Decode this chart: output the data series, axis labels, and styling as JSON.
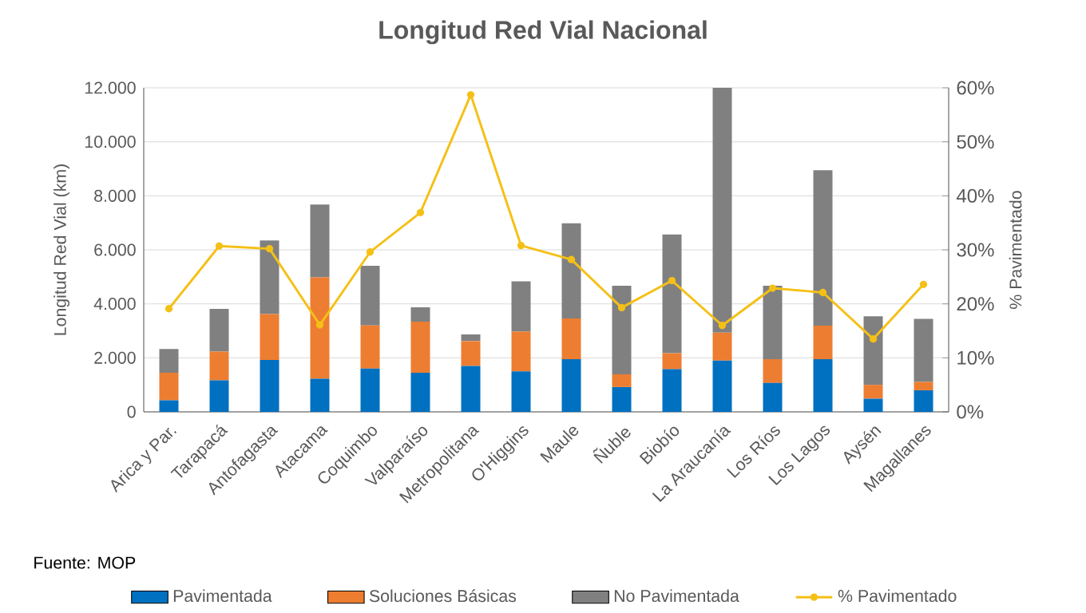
{
  "chart_data": {
    "type": "bar",
    "title": "Longitud Red Vial Nacional",
    "ylabel": "Longitud Red Vial (km)",
    "y2label": "% Pavimentado",
    "categories": [
      "Arica y Par.",
      "Tarapacá",
      "Antofagasta",
      "Atacama",
      "Coquimbo",
      "Valparaíso",
      "Metropolitana",
      "O'Higgins",
      "Maule",
      "Ñuble",
      "Biobío",
      "La Araucanía",
      "Los Ríos",
      "Los Lagos",
      "Aysén",
      "Magallanes"
    ],
    "stacked": true,
    "series": [
      {
        "name": "Pavimentada",
        "color": "#0070c0",
        "values": [
          430,
          1170,
          1920,
          1230,
          1600,
          1450,
          1700,
          1500,
          1950,
          920,
          1580,
          1900,
          1070,
          1950,
          490,
          800
        ]
      },
      {
        "name": "Soluciones Básicas",
        "color": "#ed7d31",
        "values": [
          1020,
          1060,
          1700,
          3750,
          1600,
          1890,
          920,
          1470,
          1510,
          470,
          590,
          1030,
          880,
          1240,
          510,
          310
        ]
      },
      {
        "name": "No Pavimentada",
        "color": "#808080",
        "values": [
          880,
          1580,
          2730,
          2700,
          2210,
          530,
          250,
          1860,
          3520,
          3280,
          4400,
          9070,
          2720,
          5760,
          2540,
          2330
        ]
      },
      {
        "name": "% Pavimentado",
        "type": "line",
        "axis": "y2",
        "color": "#f5c016",
        "marker": "circle",
        "line_style": "solid",
        "values": [
          19.1,
          30.7,
          30.2,
          16.1,
          29.6,
          36.9,
          58.7,
          30.8,
          28.2,
          19.3,
          24.3,
          16.0,
          22.9,
          22.1,
          13.5,
          23.6
        ]
      }
    ],
    "ylim": [
      0,
      12000
    ],
    "yticks": [
      {
        "value": 0,
        "label": "0"
      },
      {
        "value": 2000,
        "label": "2.000"
      },
      {
        "value": 4000,
        "label": "4.000"
      },
      {
        "value": 6000,
        "label": "6.000"
      },
      {
        "value": 8000,
        "label": "8.000"
      },
      {
        "value": 10000,
        "label": "10.000"
      },
      {
        "value": 12000,
        "label": "12.000"
      }
    ],
    "y2lim": [
      0,
      60
    ],
    "y2ticks": [
      {
        "value": 0,
        "label": "0%"
      },
      {
        "value": 10,
        "label": "10%"
      },
      {
        "value": 20,
        "label": "20%"
      },
      {
        "value": 30,
        "label": "30%"
      },
      {
        "value": 40,
        "label": "40%"
      },
      {
        "value": 50,
        "label": "50%"
      },
      {
        "value": 60,
        "label": "60%"
      }
    ],
    "grid": "y",
    "legend": "bottom",
    "annotations": [
      "Fuente: MOP"
    ]
  }
}
